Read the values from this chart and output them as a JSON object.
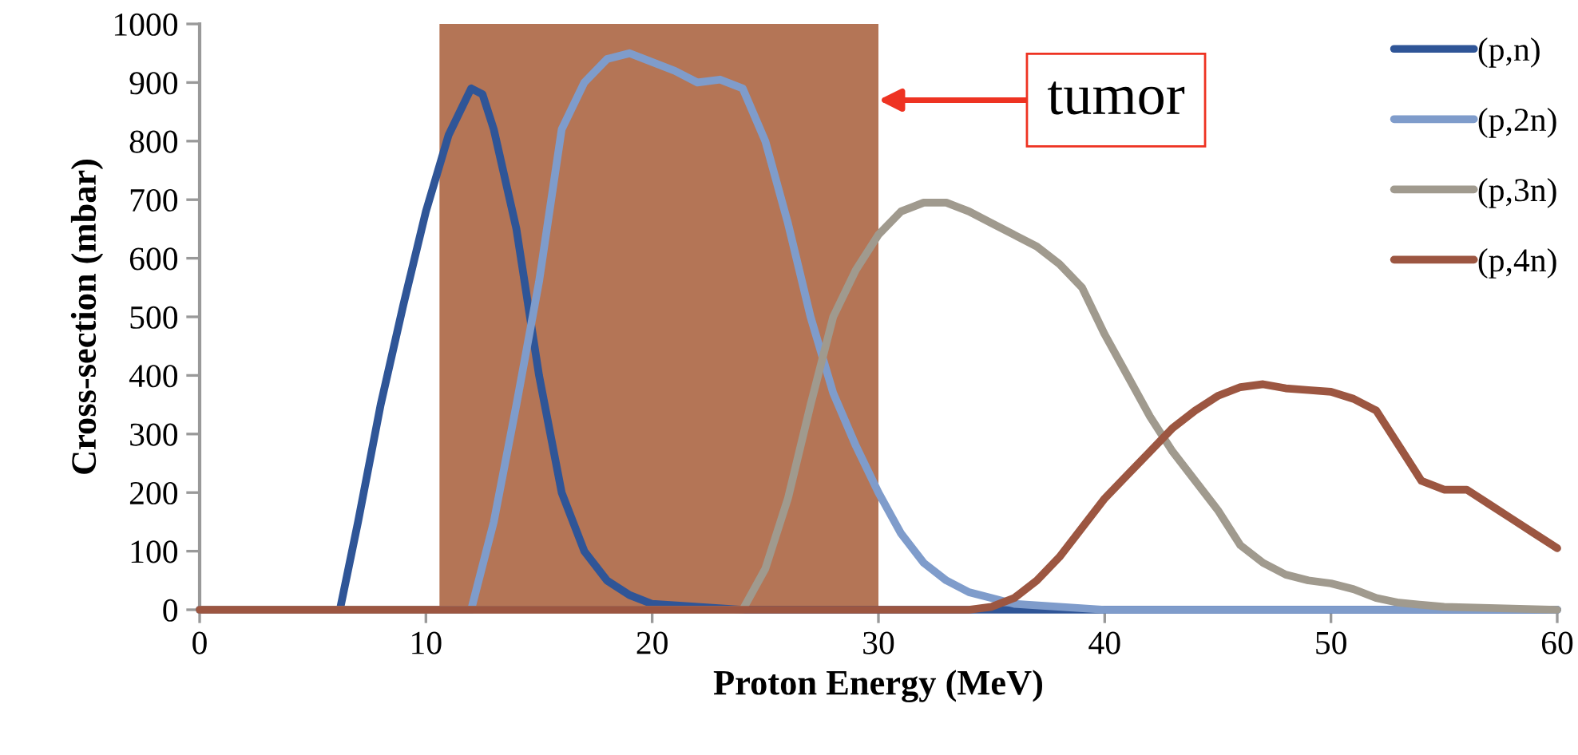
{
  "chart_data": {
    "type": "line",
    "xlabel": "Proton Energy (MeV)",
    "ylabel": "Cross-section (mbar)",
    "xlim": [
      0,
      60
    ],
    "xticks": [
      0,
      10,
      20,
      30,
      40,
      50,
      60
    ],
    "ylim": [
      0,
      1000
    ],
    "yticks": [
      0,
      100,
      200,
      300,
      400,
      500,
      600,
      700,
      800,
      900,
      1000
    ],
    "grid": false,
    "legend": "right",
    "marker": "none",
    "line_style": "solid",
    "bands": [
      {
        "axis": "x",
        "from": 10.6,
        "to": 30,
        "color": "#b47556"
      }
    ],
    "annotations": [
      {
        "text": "tumor",
        "x": 30,
        "y": 870
      }
    ],
    "series": [
      {
        "name": "(p,n)",
        "color": "#2f5597",
        "x": [
          0,
          6,
          6.2,
          7,
          8,
          9,
          10,
          11,
          12,
          12.5,
          13,
          14,
          15,
          16,
          17,
          18,
          19,
          20,
          24,
          60
        ],
        "values": [
          0,
          0,
          0,
          150,
          350,
          520,
          680,
          810,
          890,
          880,
          820,
          650,
          400,
          200,
          100,
          50,
          25,
          10,
          0,
          0
        ]
      },
      {
        "name": "(p,2n)",
        "color": "#7f9ccb",
        "x": [
          0,
          12,
          13,
          14,
          15,
          16,
          17,
          18,
          19,
          20,
          21,
          22,
          23,
          24,
          25,
          26,
          27,
          28,
          29,
          30,
          31,
          32,
          33,
          34,
          36,
          40,
          60
        ],
        "values": [
          0,
          0,
          150,
          350,
          560,
          820,
          900,
          940,
          950,
          935,
          920,
          900,
          905,
          890,
          800,
          660,
          500,
          370,
          280,
          200,
          130,
          80,
          50,
          30,
          10,
          0,
          0
        ]
      },
      {
        "name": "(p,3n)",
        "color": "#a09a8e",
        "x": [
          0,
          24,
          25,
          26,
          27,
          28,
          29,
          30,
          31,
          32,
          33,
          34,
          35,
          36,
          37,
          38,
          39,
          40,
          41,
          42,
          43,
          44,
          45,
          46,
          47,
          48,
          49,
          50,
          51,
          52,
          53,
          55,
          60
        ],
        "values": [
          0,
          0,
          70,
          190,
          350,
          500,
          580,
          640,
          680,
          695,
          695,
          680,
          660,
          640,
          620,
          590,
          550,
          470,
          400,
          330,
          270,
          220,
          170,
          110,
          80,
          60,
          50,
          45,
          35,
          20,
          12,
          5,
          0
        ]
      },
      {
        "name": "(p,4n)",
        "color": "#9c5641",
        "x": [
          0,
          34,
          35,
          36,
          37,
          38,
          39,
          40,
          41,
          42,
          43,
          44,
          45,
          46,
          47,
          48,
          49,
          50,
          51,
          52,
          53,
          54,
          55,
          56,
          57,
          58,
          59,
          60
        ],
        "values": [
          0,
          0,
          5,
          20,
          50,
          90,
          140,
          190,
          230,
          270,
          310,
          340,
          365,
          380,
          385,
          378,
          375,
          372,
          360,
          340,
          280,
          220,
          205,
          205,
          180,
          155,
          130,
          105
        ]
      }
    ]
  }
}
